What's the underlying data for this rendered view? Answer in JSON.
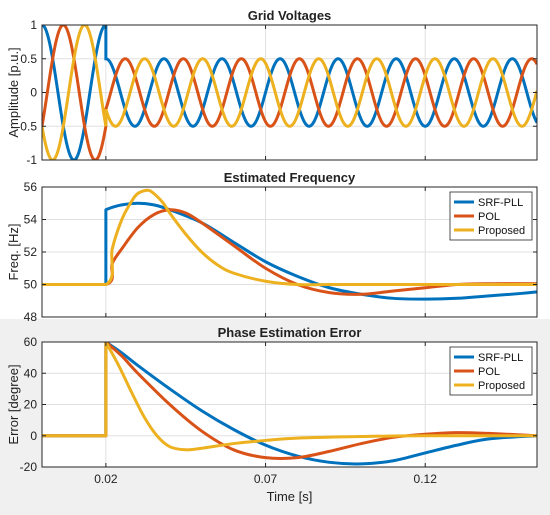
{
  "colors": {
    "blue": "#0072BD",
    "orange": "#D95319",
    "yellow": "#EDB120",
    "grid": "#e0e0e0",
    "panel_bg": "#f0f0f0"
  },
  "chart_data": [
    {
      "type": "line",
      "title": "Grid Voltages",
      "ylabel": "Amplitude [p.u.]",
      "xlabel": "",
      "xlim": [
        0,
        0.155
      ],
      "ylim": [
        -1,
        1
      ],
      "yticks": [
        -1,
        -0.5,
        0,
        0.5,
        1
      ],
      "ytick_labels": [
        "-1",
        "-0.5",
        "0",
        "0.5",
        "1"
      ],
      "xticks": [
        0.02,
        0.07,
        0.12
      ],
      "xtick_labels": [],
      "grid": true,
      "signal": {
        "frequency_hz_before": 50,
        "frequency_hz_after": 55,
        "amplitude_before": 1,
        "amplitude_after": 0.5,
        "step_time": 0.02,
        "phases_deg": [
          0,
          -120,
          120
        ]
      },
      "series": [
        {
          "color": "blue"
        },
        {
          "color": "orange"
        },
        {
          "color": "yellow"
        }
      ]
    },
    {
      "type": "line",
      "title": "Estimated Frequency",
      "ylabel": "Freq. [Hz]",
      "xlabel": "",
      "xlim": [
        0,
        0.155
      ],
      "ylim": [
        48,
        56
      ],
      "yticks": [
        48,
        50,
        52,
        54,
        56
      ],
      "ytick_labels": [
        "48",
        "50",
        "52",
        "54",
        "56"
      ],
      "xticks": [
        0.02,
        0.07,
        0.12
      ],
      "xtick_labels": [],
      "grid": true,
      "legend": "top-right",
      "series": [
        {
          "name": "SRF-PLL",
          "color": "blue",
          "x": [
            0,
            0.02,
            0.02,
            0.022,
            0.025,
            0.03,
            0.035,
            0.04,
            0.05,
            0.06,
            0.07,
            0.08,
            0.09,
            0.1,
            0.11,
            0.12,
            0.13,
            0.14,
            0.15,
            0.155
          ],
          "y": [
            50,
            50,
            54.6,
            54.75,
            54.9,
            55.0,
            54.9,
            54.6,
            53.8,
            52.6,
            51.4,
            50.5,
            49.8,
            49.4,
            49.15,
            49.1,
            49.15,
            49.3,
            49.45,
            49.55
          ]
        },
        {
          "name": "POL",
          "color": "orange",
          "x": [
            0,
            0.02,
            0.022,
            0.025,
            0.03,
            0.035,
            0.04,
            0.045,
            0.05,
            0.06,
            0.07,
            0.08,
            0.09,
            0.1,
            0.11,
            0.12,
            0.13,
            0.14,
            0.155
          ],
          "y": [
            50,
            50,
            51.3,
            52.2,
            53.5,
            54.3,
            54.6,
            54.4,
            53.8,
            52.4,
            51.0,
            50.0,
            49.5,
            49.4,
            49.6,
            49.8,
            50.0,
            50.05,
            50.05
          ]
        },
        {
          "name": "Proposed",
          "color": "yellow",
          "x": [
            0,
            0.02,
            0.022,
            0.025,
            0.028,
            0.03,
            0.033,
            0.035,
            0.038,
            0.04,
            0.045,
            0.05,
            0.055,
            0.06,
            0.07,
            0.08,
            0.09,
            0.1,
            0.155
          ],
          "y": [
            50,
            50,
            52.2,
            54.0,
            55.1,
            55.6,
            55.8,
            55.6,
            55.0,
            54.4,
            53.1,
            52.0,
            51.2,
            50.7,
            50.2,
            50.0,
            50.0,
            50.0,
            50.0
          ]
        }
      ]
    },
    {
      "type": "line",
      "title": "Phase Estimation Error",
      "ylabel": "Error [degree]",
      "xlabel": "Time [s]",
      "xlim": [
        0,
        0.155
      ],
      "ylim": [
        -20,
        60
      ],
      "yticks": [
        -20,
        0,
        20,
        40,
        60
      ],
      "ytick_labels": [
        "-20",
        "0",
        "20",
        "40",
        "60"
      ],
      "xticks": [
        0.02,
        0.07,
        0.12
      ],
      "xtick_labels": [
        "0.02",
        "0.07",
        "0.12"
      ],
      "grid": true,
      "legend": "top-right",
      "series": [
        {
          "name": "SRF-PLL",
          "color": "blue",
          "x": [
            0,
            0.02,
            0.02,
            0.025,
            0.03,
            0.04,
            0.05,
            0.06,
            0.07,
            0.08,
            0.09,
            0.1,
            0.11,
            0.12,
            0.13,
            0.14,
            0.155
          ],
          "y": [
            0,
            0,
            60,
            53,
            45,
            30,
            16,
            4,
            -6,
            -13,
            -17,
            -18,
            -16,
            -11,
            -6,
            -2,
            0
          ]
        },
        {
          "name": "POL",
          "color": "orange",
          "x": [
            0,
            0.02,
            0.02,
            0.025,
            0.03,
            0.04,
            0.05,
            0.06,
            0.07,
            0.08,
            0.09,
            0.1,
            0.11,
            0.12,
            0.13,
            0.14,
            0.155
          ],
          "y": [
            0,
            0,
            60,
            51,
            40,
            20,
            3,
            -9,
            -14,
            -14,
            -10,
            -5,
            -1,
            1,
            2,
            1.5,
            0
          ]
        },
        {
          "name": "Proposed",
          "color": "yellow",
          "x": [
            0,
            0.02,
            0.02,
            0.024,
            0.028,
            0.032,
            0.036,
            0.04,
            0.045,
            0.05,
            0.06,
            0.07,
            0.08,
            0.1,
            0.12,
            0.155
          ],
          "y": [
            0,
            0,
            60,
            45,
            28,
            12,
            0,
            -7,
            -9,
            -8,
            -5,
            -3,
            -1.5,
            -0.5,
            0,
            0
          ]
        }
      ]
    }
  ]
}
